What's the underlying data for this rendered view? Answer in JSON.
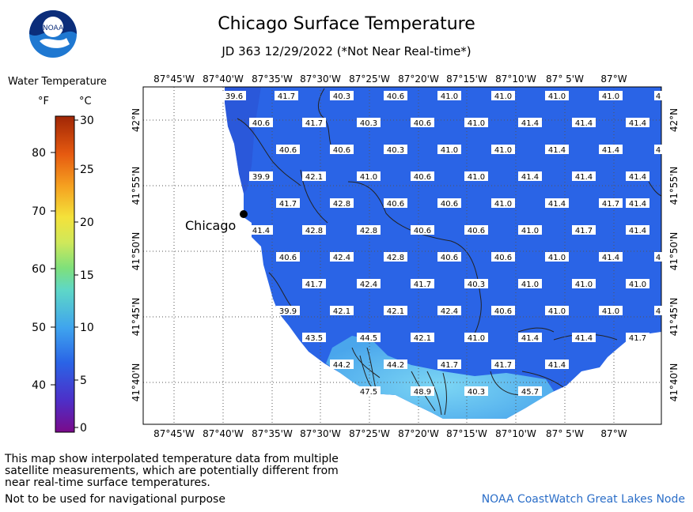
{
  "header": {
    "title": "Chicago Surface Temperature",
    "subtitle": "JD 363 12/29/2022 (*Not Near Real-time*)",
    "logo_text": "NOAA"
  },
  "legend": {
    "title": "Water Temperature",
    "unit_f": "°F",
    "unit_c": "°C",
    "f_ticks": [
      "40",
      "50",
      "60",
      "70",
      "80"
    ],
    "c_ticks": [
      "0",
      "5",
      "10",
      "15",
      "20",
      "25",
      "30"
    ]
  },
  "axes": {
    "lon_labels": [
      "87°45'W",
      "87°40'W",
      "87°35'W",
      "87°30'W",
      "87°25'W",
      "87°20'W",
      "87°15'W",
      "87°10'W",
      "87° 5'W",
      "87°W"
    ],
    "lat_labels": [
      "42°N",
      "41°55'N",
      "41°50'N",
      "41°45'N",
      "41°40'N"
    ]
  },
  "city": {
    "name": "Chicago"
  },
  "grid_values": [
    {
      "row": 0,
      "values": [
        "39.6",
        "41.7",
        "40.3",
        "40.6",
        "41.0",
        "41.0",
        "41.0",
        "41.0",
        "4"
      ]
    },
    {
      "row": 1,
      "values": [
        "40.6",
        "41.7",
        "40.3",
        "40.6",
        "41.0",
        "41.4",
        "41.4",
        "41.4"
      ]
    },
    {
      "row": 2,
      "values": [
        "40.6",
        "40.6",
        "40.3",
        "41.0",
        "41.0",
        "41.4",
        "41.4",
        "4"
      ]
    },
    {
      "row": 3,
      "values": [
        "39.9",
        "42.1",
        "41.0",
        "40.6",
        "41.0",
        "41.4",
        "41.4",
        "41.4"
      ]
    },
    {
      "row": 4,
      "values": [
        "41.7",
        "42.8",
        "40.6",
        "40.6",
        "41.0",
        "41.4",
        "41.7",
        "41.4"
      ]
    },
    {
      "row": 5,
      "values": [
        "41.4",
        "42.8",
        "42.8",
        "40.6",
        "40.6",
        "41.0",
        "41.7",
        "41.4"
      ]
    },
    {
      "row": 6,
      "values": [
        "40.6",
        "42.4",
        "42.8",
        "40.6",
        "40.6",
        "41.0",
        "41.4",
        "4"
      ]
    },
    {
      "row": 7,
      "values": [
        "41.7",
        "42.4",
        "41.7",
        "40.3",
        "41.0",
        "41.0",
        "41.0"
      ]
    },
    {
      "row": 8,
      "values": [
        "39.9",
        "42.1",
        "42.1",
        "42.4",
        "40.6",
        "41.0",
        "41.0",
        "4"
      ]
    },
    {
      "row": 9,
      "values": [
        "43.5",
        "44.5",
        "42.1",
        "41.0",
        "41.4",
        "41.4",
        "41.7"
      ]
    },
    {
      "row": 10,
      "values": [
        "44.2",
        "44.2",
        "41.7",
        "41.7",
        "41.4"
      ]
    },
    {
      "row": 11,
      "values": [
        "47.5",
        "48.9",
        "40.3",
        "45.7"
      ]
    }
  ],
  "footer": {
    "disclaimer": "This map show interpolated temperature data from multiple satellite measurements, which are potentially different from near real-time surface temperatures.",
    "nav_warning": "Not to be used for navigational purpose",
    "credit": "NOAA CoastWatch Great Lakes Node"
  },
  "colors": {
    "lake": "#2a64e6",
    "warm": "#4ab0ee",
    "land": "#ffffff",
    "credit": "#2b6ec8"
  }
}
